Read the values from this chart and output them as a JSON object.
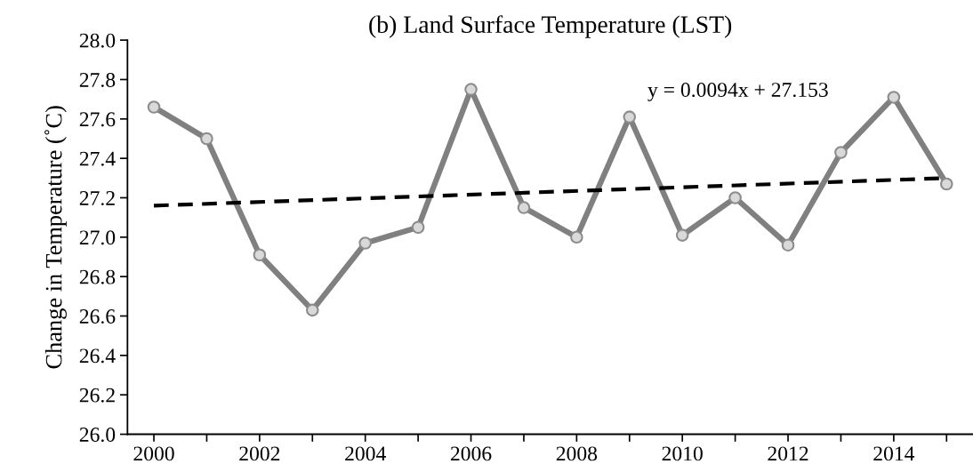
{
  "chart_data": {
    "type": "line",
    "title": "(b) Land Surface Temperature (LST)",
    "ylabel": "Change in Temperature (˚C)",
    "x": [
      2000,
      2001,
      2002,
      2003,
      2004,
      2005,
      2006,
      2007,
      2008,
      2009,
      2010,
      2011,
      2012,
      2013,
      2014,
      2015
    ],
    "series": [
      {
        "color": "#808080",
        "marker": "circle",
        "values": [
          27.66,
          27.5,
          26.91,
          26.63,
          26.97,
          27.05,
          27.75,
          27.15,
          27.0,
          27.61,
          27.01,
          27.2,
          26.96,
          27.43,
          27.71,
          27.27
        ]
      },
      {
        "type": "line",
        "color": "#000000",
        "marker": "none",
        "line_style": "dashed",
        "x": [
          2000,
          2015
        ],
        "values": [
          27.16,
          27.3
        ]
      }
    ],
    "annotations": [
      "y = 0.0094x + 27.153"
    ],
    "xlim": [
      1999.5,
      2015.5
    ],
    "ylim": [
      26.0,
      28.0
    ],
    "xticks": [
      2000,
      {
        "value": 2001,
        "label": null
      },
      2002,
      {
        "value": 2003,
        "label": null
      },
      2004,
      {
        "value": 2005,
        "label": null
      },
      2006,
      {
        "value": 2007,
        "label": null
      },
      2008,
      {
        "value": 2009,
        "label": null
      },
      2010,
      {
        "value": 2011,
        "label": null
      },
      2012,
      {
        "value": 2013,
        "label": null
      },
      2014,
      {
        "value": 2015,
        "label": null
      }
    ],
    "yticks": [
      {
        "value": 26.0,
        "label": "26.0"
      },
      26.2,
      26.4,
      26.6,
      26.8,
      {
        "value": 27.0,
        "label": "27.0"
      },
      27.2,
      27.4,
      27.6,
      27.8,
      {
        "value": 28.0,
        "label": "28.0"
      }
    ],
    "grid": false,
    "legend": false
  }
}
